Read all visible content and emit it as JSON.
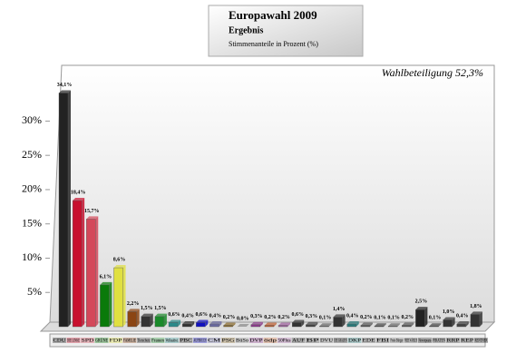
{
  "chart_data": {
    "type": "bar",
    "title": "Europawahl 2009",
    "subtitle": "Ergebnis",
    "axis_label": "Stimmenanteile in Prozent (%)",
    "annotation": "Wahlbeteiligung 52,3%",
    "categories": [
      "CDU",
      "DIE LINKE",
      "SPD",
      "GRÜNE",
      "FDP",
      "FAMILIE",
      "Tierschutz",
      "Frauen",
      "Volksabst.",
      "PBC",
      "AUFBRUCH",
      "CM",
      "PSG",
      "BüSo",
      "DVP",
      "ödp",
      "50Plus",
      "AUF",
      "BP",
      "DVU",
      "DIE GRAUEN",
      "DKP",
      "EDE",
      "FBI",
      "Freie Bürger",
      "FREIE WÄHLER",
      "Newropeans",
      "PIRATEN",
      "RRP",
      "REP",
      "RENTNER"
    ],
    "values": [
      34.1,
      18.4,
      15.7,
      6.1,
      8.6,
      2.2,
      1.5,
      1.5,
      0.6,
      0.4,
      0.6,
      0.4,
      0.2,
      0.0,
      0.3,
      0.2,
      0.2,
      0.6,
      0.3,
      0.1,
      1.4,
      0.4,
      0.2,
      0.1,
      0.1,
      0.2,
      2.5,
      0.1,
      1.0,
      0.4,
      1.8
    ],
    "value_labels": [
      "34,1%",
      "18,4%",
      "15,7%",
      "6,1%",
      "8,6%",
      "2,2%",
      "1,5%",
      "1,5%",
      "0,6%",
      "0,4%",
      "0,6%",
      "0,4%",
      "0,2%",
      "0,0%",
      "0,3%",
      "0,2%",
      "0,2%",
      "0,6%",
      "0,3%",
      "0,1%",
      "1,4%",
      "0,4%",
      "0,2%",
      "0,1%",
      "0,1%",
      "0,2%",
      "2,5%",
      "0,1%",
      "1,0%",
      "0,4%",
      "1,8%"
    ],
    "colors": [
      "#222222",
      "#c8102e",
      "#d4485a",
      "#0a7a0a",
      "#e0e040",
      "#8b4513",
      "#333333",
      "#1a8a2a",
      "#2a8a8a",
      "#333333",
      "#1010c0",
      "#6a6aa0",
      "#8a6a2a",
      "#888888",
      "#8a3a8a",
      "#c06030",
      "#a060a0",
      "#333333",
      "#444444",
      "#666666",
      "#333333",
      "#2a7a7a",
      "#555555",
      "#444444",
      "#666666",
      "#555555",
      "#222222",
      "#444444",
      "#333333",
      "#444444",
      "#333333"
    ],
    "ylim": [
      0,
      38
    ],
    "yticks": [
      {
        "value": 5,
        "label": "5%"
      },
      {
        "value": 10,
        "label": "10%"
      },
      {
        "value": 15,
        "label": "15%"
      },
      {
        "value": 20,
        "label": "20%"
      },
      {
        "value": 25,
        "label": "25%"
      },
      {
        "value": 30,
        "label": "30%"
      }
    ],
    "grid": false
  }
}
